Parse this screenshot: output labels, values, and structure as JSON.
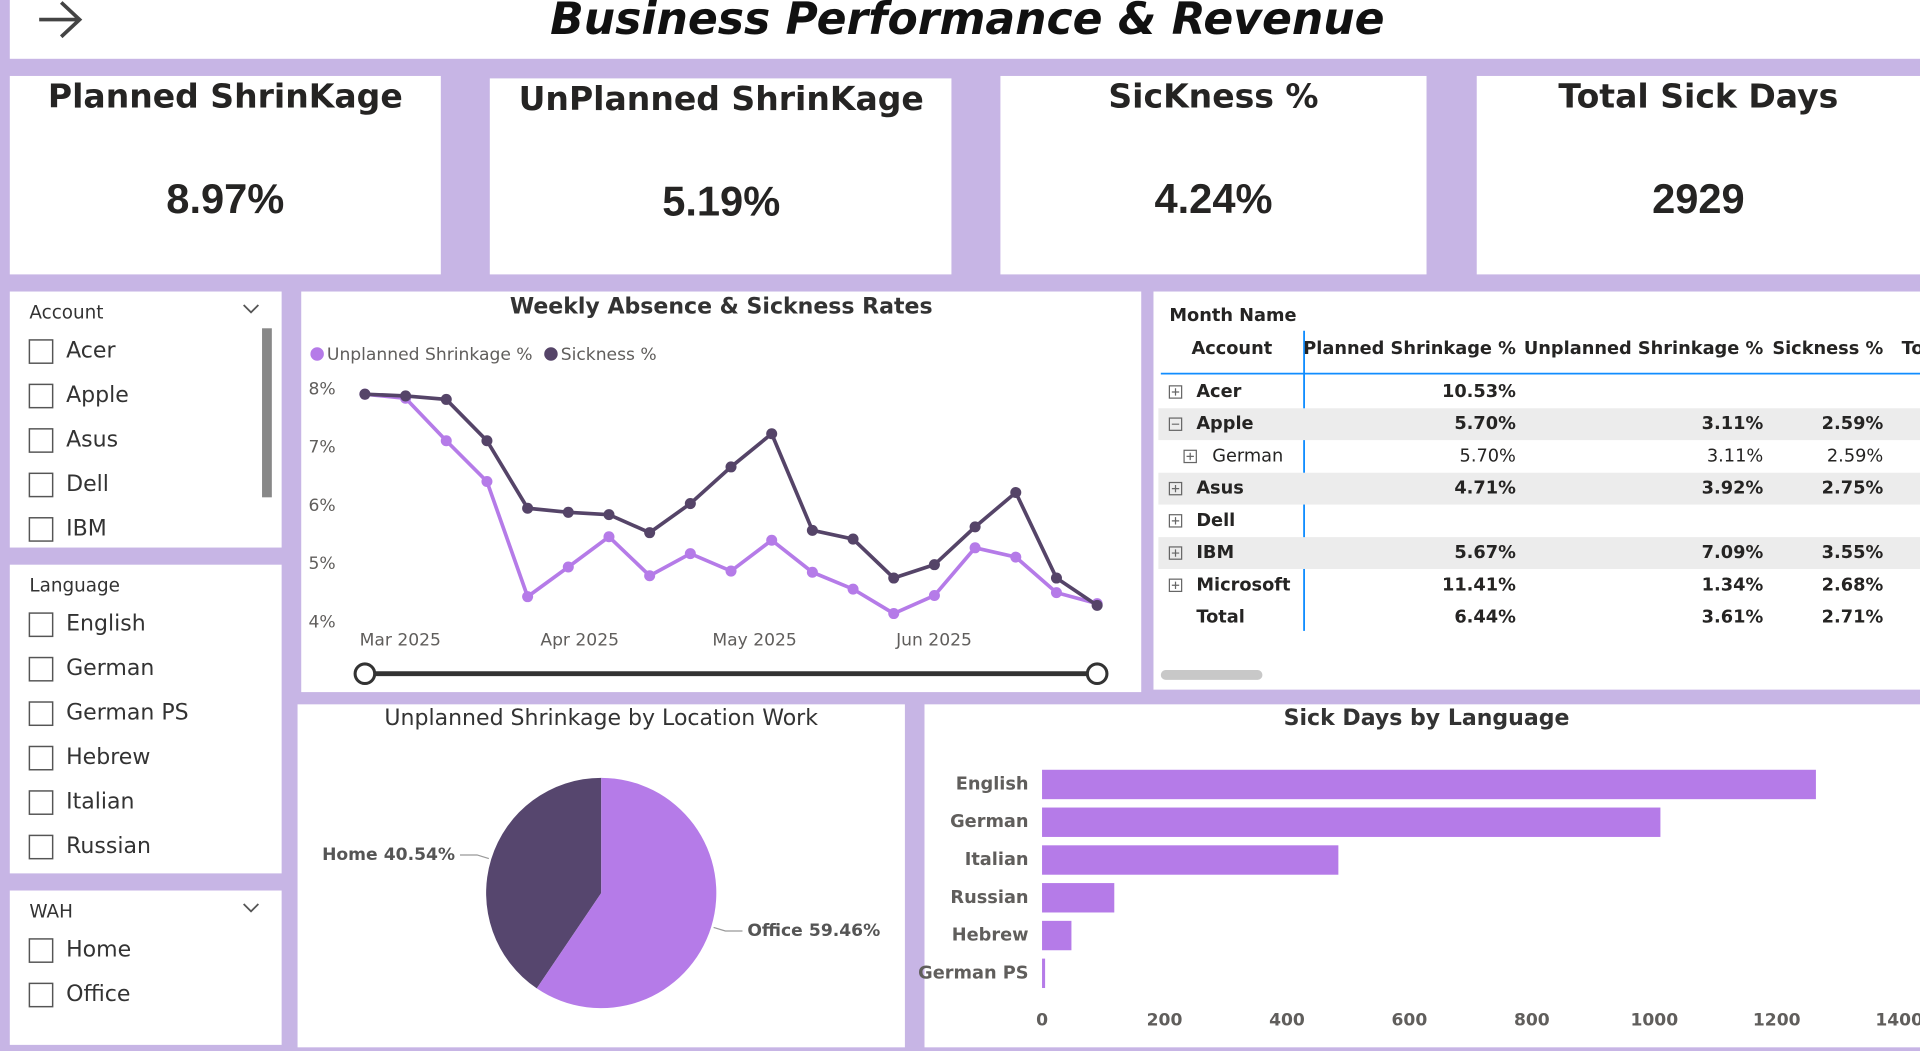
{
  "header": {
    "title": "Business Performance & Revenue"
  },
  "kpis": [
    {
      "label": "Planned ShrinKage",
      "value": "8.97%"
    },
    {
      "label": "UnPlanned ShrinKage",
      "value": "5.19%"
    },
    {
      "label": "SicKness %",
      "value": "4.24%"
    },
    {
      "label": "Total Sick Days",
      "value": "2929"
    }
  ],
  "slicers": [
    {
      "title": "Account",
      "items": [
        "Acer",
        "Apple",
        "Asus",
        "Dell",
        "IBM"
      ]
    },
    {
      "title": "Language",
      "items": [
        "English",
        "German",
        "German PS",
        "Hebrew",
        "Italian",
        "Russian"
      ]
    },
    {
      "title": "WAH",
      "items": [
        "Home",
        "Office"
      ]
    }
  ],
  "table": {
    "corner": "Month Name",
    "columns": [
      "Account",
      "Planned Shrinkage %",
      "Unplanned Shrinkage %",
      "Sickness %",
      "To"
    ],
    "rows": [
      [
        "Acer",
        "10.53%",
        null,
        null
      ],
      [
        "Apple",
        "5.70%",
        "3.11%",
        "2.59%"
      ],
      [
        "German",
        "5.70%",
        "3.11%",
        "2.59%"
      ],
      [
        "Asus",
        "4.71%",
        "3.92%",
        "2.75%"
      ],
      [
        "Dell",
        null,
        null,
        null
      ],
      [
        "IBM",
        "5.67%",
        "7.09%",
        "3.55%"
      ],
      [
        "Microsoft",
        "11.41%",
        "1.34%",
        "2.68%"
      ],
      [
        "Total",
        "6.44%",
        "3.61%",
        "2.71%"
      ]
    ]
  },
  "chart_data": [
    {
      "type": "line",
      "title": "Weekly Absence & Sickness Rates",
      "x": [
        1,
        2,
        3,
        4,
        5,
        6,
        7,
        8,
        9,
        10,
        11,
        12,
        13,
        14,
        15,
        16,
        17,
        18,
        19
      ],
      "xlim": [
        1,
        19
      ],
      "xticks": [
        {
          "value": 1.87,
          "label": "Mar 2025"
        },
        {
          "value": 6.28,
          "label": "Apr 2025"
        },
        {
          "value": 10.58,
          "label": "May 2025"
        },
        {
          "value": 14.99,
          "label": "Jun 2025"
        }
      ],
      "ylim": [
        3.8,
        8.2
      ],
      "yticks": [
        {
          "value": 4,
          "label": "4%"
        },
        {
          "value": 5,
          "label": "5%"
        },
        {
          "value": 6,
          "label": "6%"
        },
        {
          "value": 7,
          "label": "7%"
        },
        {
          "value": 8,
          "label": "8%"
        }
      ],
      "series": [
        {
          "name": "Unplanned Shrinkage %",
          "color": "#b57be8",
          "values": [
            7.92,
            7.85,
            7.12,
            6.42,
            4.44,
            4.95,
            5.47,
            4.8,
            5.18,
            4.88,
            5.41,
            4.86,
            4.57,
            4.15,
            4.46,
            5.28,
            5.12,
            4.51,
            4.32
          ]
        },
        {
          "name": "Sickness %",
          "color": "#554468",
          "values": [
            7.92,
            7.89,
            7.83,
            7.12,
            5.96,
            5.89,
            5.85,
            5.54,
            6.04,
            6.67,
            7.24,
            5.58,
            5.43,
            4.76,
            4.99,
            5.64,
            6.23,
            4.76,
            4.29
          ]
        }
      ]
    },
    {
      "type": "pie",
      "title": "Unplanned Shrinkage by Location Work",
      "categories": [
        "Home",
        "Office"
      ],
      "values": [
        40.54,
        59.46
      ],
      "value_labels": [
        "40.54%",
        "59.46%"
      ],
      "colors": [
        "#56466e",
        "#b57be8"
      ]
    },
    {
      "type": "bar",
      "orientation": "horizontal",
      "title": "Sick Days by Language",
      "categories": [
        "English",
        "German",
        "Italian",
        "Russian",
        "Hebrew",
        "German PS"
      ],
      "values": [
        1264,
        1010,
        484,
        118,
        48,
        5
      ],
      "color": "#b57be8",
      "xlim": [
        0,
        1400
      ],
      "xticks": [
        0,
        200,
        400,
        600,
        800,
        1000,
        1200,
        1400
      ]
    }
  ]
}
